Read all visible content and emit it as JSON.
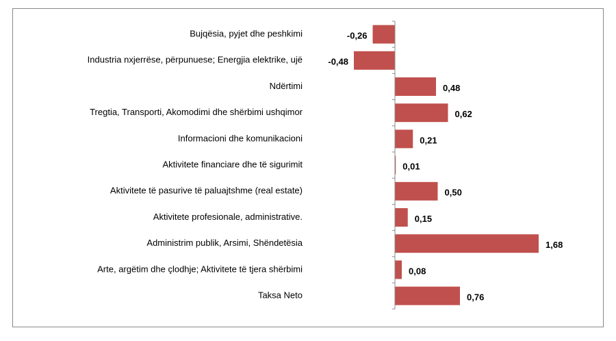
{
  "chart_data": {
    "type": "bar",
    "orientation": "horizontal",
    "color": "#c0504d",
    "categories": [
      "Bujqësia, pyjet dhe peshkimi",
      "Industria nxjerrëse, përpunuese; Energjia elektrike, ujë",
      "Ndërtimi",
      "Tregtia, Transporti, Akomodimi dhe shërbimi ushqimor",
      "Informacioni dhe komunikacioni",
      "Aktivitete financiare dhe të sigurimit",
      "Aktivitete të pasurive të paluajtshme (real estate)",
      "Aktivitete profesionale, administrative.",
      "Administrim publik, Arsimi, Shëndetësia",
      "Arte, argëtim dhe çlodhje; Aktivitete të tjera shërbimi",
      "Taksa Neto"
    ],
    "values": [
      -0.26,
      -0.48,
      0.48,
      0.62,
      0.21,
      0.01,
      0.5,
      0.15,
      1.68,
      0.08,
      0.76
    ],
    "value_labels": [
      "-0,26",
      "-0,48",
      "0,48",
      "0,62",
      "0,21",
      "0,01",
      "0,50",
      "0,15",
      "1,68",
      "0,08",
      "0,76"
    ]
  }
}
